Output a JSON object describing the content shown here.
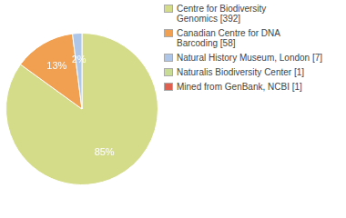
{
  "chart_data": {
    "type": "pie",
    "categories": [
      "Centre for Biodiversity\nGenomics [392]",
      "Canadian Centre for DNA\nBarcoding [58]",
      "Natural History Museum, London [7]",
      "Naturalis Biodiversity Center [1]",
      "Mined from GenBank, NCBI [1]"
    ],
    "values": [
      85,
      13,
      2,
      0,
      0
    ],
    "value_labels": [
      "85%",
      "13%",
      "2%",
      null,
      null
    ],
    "colors": [
      "#d4dc8a",
      "#f0a050",
      "#aec6e8",
      "#c8dc96",
      "#e06050"
    ],
    "data_labels": true,
    "legend": "right"
  }
}
